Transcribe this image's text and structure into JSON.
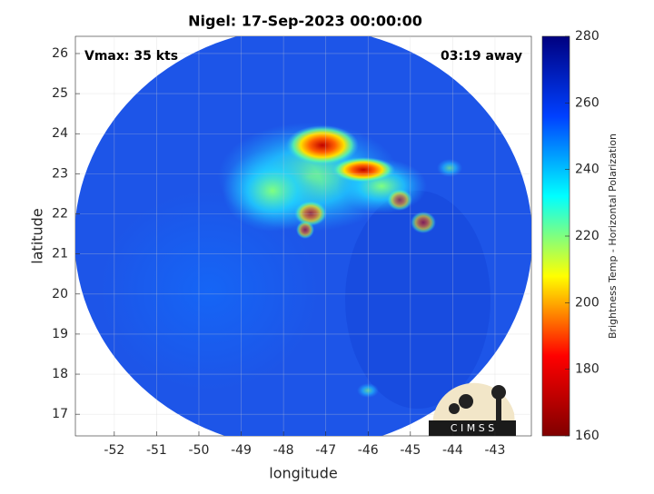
{
  "chart_data": {
    "type": "image",
    "title": "Nigel: 17-Sep-2023 00:00:00",
    "annotations": [
      "Vmax: 35 kts",
      "03:19 away"
    ],
    "xlabel": "longitude",
    "ylabel": "latitude",
    "xlim": [
      -52.92,
      -42.14
    ],
    "xticks": [
      -52,
      -51,
      -50,
      -49,
      -48,
      -47,
      -46,
      -45,
      -44,
      -43
    ],
    "ylim": [
      16.46,
      26.43
    ],
    "yticks": [
      17,
      18,
      19,
      20,
      21,
      22,
      23,
      24,
      25,
      26
    ],
    "grid": true,
    "colorbar": {
      "label": "Brightness Temp - Horizontal Polarization",
      "lim": [
        160,
        280
      ],
      "ticks": [
        160,
        180,
        200,
        220,
        240,
        260,
        280
      ],
      "colors": [
        "#800000",
        "#ff0000",
        "#ffff00",
        "#00ffff",
        "#0040ff",
        "#000080"
      ]
    },
    "logo_text": "C I M S S"
  }
}
